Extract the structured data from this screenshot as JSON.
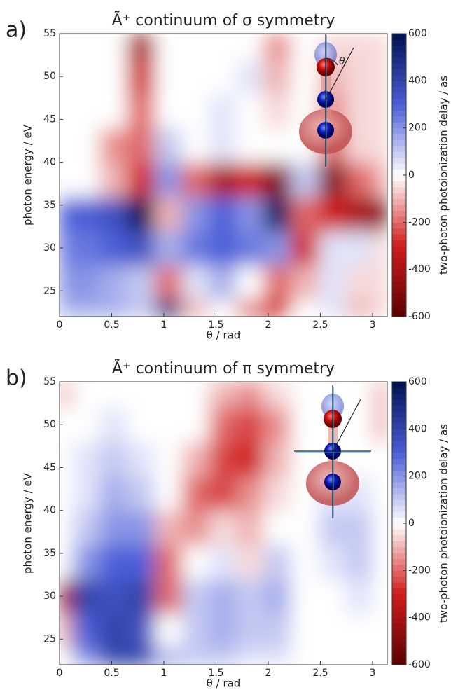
{
  "chart_data": [
    {
      "type": "heatmap",
      "panel_label": "a)",
      "title": "Ã⁺ continuum of σ symmetry",
      "xlabel": "θ / rad",
      "ylabel": "photon energy / eV",
      "colorbar_label": "two-photon photoionization delay / as",
      "inset_label": "θ",
      "xlim": [
        0,
        3.1416
      ],
      "ylim": [
        22,
        55
      ],
      "xticks": [
        0,
        0.5,
        1,
        1.5,
        2,
        2.5,
        3
      ],
      "yticks": [
        25,
        30,
        35,
        40,
        45,
        50,
        55
      ],
      "clim": [
        -600,
        600
      ],
      "cticks": [
        -600,
        -400,
        -200,
        0,
        200,
        400,
        600
      ],
      "colors": [
        "#5a0000",
        "#d01c1c",
        "#ffffff",
        "#4c5ed8",
        "#00104f"
      ],
      "x": [
        0,
        0.26,
        0.52,
        0.79,
        1.05,
        1.31,
        1.57,
        1.83,
        2.09,
        2.36,
        2.62,
        2.88,
        3.14
      ],
      "y": [
        22,
        26,
        30,
        34,
        38,
        42,
        46,
        50,
        54
      ],
      "z": [
        [
          150,
          150,
          150,
          100,
          500,
          -100,
          0,
          -200,
          -300,
          0,
          50,
          -100,
          -50
        ],
        [
          200,
          200,
          150,
          100,
          -200,
          50,
          150,
          0,
          -200,
          -100,
          50,
          -50,
          -50
        ],
        [
          250,
          250,
          300,
          350,
          150,
          250,
          300,
          250,
          200,
          -300,
          50,
          50,
          -50
        ],
        [
          300,
          300,
          350,
          600,
          -100,
          200,
          300,
          200,
          550,
          -200,
          -300,
          -400,
          -500
        ],
        [
          0,
          0,
          -100,
          -300,
          200,
          -200,
          -400,
          -300,
          -500,
          100,
          -500,
          -200,
          -100
        ],
        [
          0,
          0,
          -150,
          -200,
          100,
          0,
          50,
          0,
          0,
          0,
          -200,
          -50,
          -50
        ],
        [
          0,
          0,
          0,
          -200,
          0,
          0,
          50,
          0,
          -50,
          0,
          -150,
          -50,
          -50
        ],
        [
          0,
          0,
          0,
          -300,
          0,
          0,
          0,
          50,
          -100,
          0,
          -100,
          -50,
          -50
        ],
        [
          0,
          0,
          0,
          -400,
          0,
          0,
          0,
          0,
          -150,
          0,
          -50,
          -50,
          -50
        ]
      ]
    },
    {
      "type": "heatmap",
      "panel_label": "b)",
      "title": "Ã⁺ continuum of π symmetry",
      "xlabel": "θ / rad",
      "ylabel": "photon energy / eV",
      "colorbar_label": "two-photon photoionization delay / as",
      "xlim": [
        0,
        3.1416
      ],
      "ylim": [
        22,
        55
      ],
      "xticks": [
        0,
        0.5,
        1,
        1.5,
        2,
        2.5,
        3
      ],
      "yticks": [
        25,
        30,
        35,
        40,
        45,
        50,
        55
      ],
      "clim": [
        -600,
        600
      ],
      "cticks": [
        -600,
        -400,
        -200,
        0,
        200,
        400,
        600
      ],
      "colors": [
        "#5a0000",
        "#d01c1c",
        "#ffffff",
        "#4c5ed8",
        "#00104f"
      ],
      "x": [
        0,
        0.26,
        0.52,
        0.79,
        1.05,
        1.31,
        1.57,
        1.83,
        2.09,
        2.36,
        2.62,
        2.88,
        3.14
      ],
      "y": [
        22,
        26,
        30,
        34,
        38,
        42,
        46,
        50,
        54
      ],
      "z": [
        [
          0,
          200,
          400,
          400,
          150,
          100,
          100,
          50,
          50,
          0,
          0,
          0,
          0
        ],
        [
          -100,
          300,
          400,
          350,
          0,
          100,
          150,
          100,
          100,
          0,
          0,
          0,
          0
        ],
        [
          -400,
          400,
          350,
          400,
          -200,
          100,
          150,
          100,
          150,
          0,
          0,
          50,
          0
        ],
        [
          0,
          200,
          300,
          300,
          -200,
          0,
          50,
          -50,
          100,
          0,
          50,
          100,
          0
        ],
        [
          0,
          100,
          200,
          200,
          -100,
          -150,
          -50,
          -100,
          0,
          0,
          100,
          100,
          0
        ],
        [
          0,
          50,
          150,
          100,
          0,
          -200,
          -250,
          -150,
          -50,
          0,
          50,
          50,
          0
        ],
        [
          0,
          50,
          100,
          50,
          0,
          -100,
          -250,
          -300,
          -100,
          0,
          0,
          0,
          0
        ],
        [
          0,
          0,
          50,
          0,
          0,
          0,
          -200,
          -250,
          -150,
          0,
          0,
          0,
          -100
        ],
        [
          -100,
          0,
          0,
          0,
          0,
          0,
          -100,
          -150,
          -50,
          0,
          0,
          0,
          -100
        ]
      ]
    }
  ]
}
